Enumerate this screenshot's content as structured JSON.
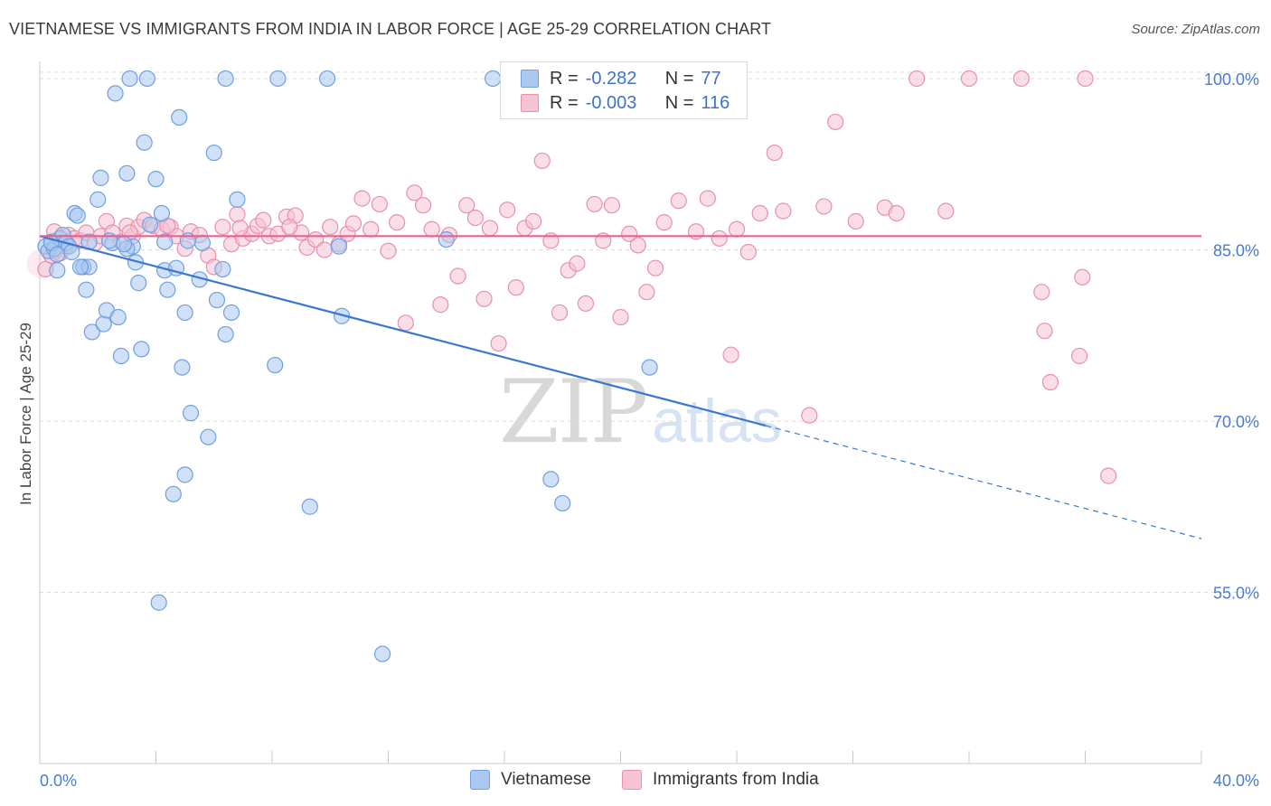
{
  "title": "VIETNAMESE VS IMMIGRANTS FROM INDIA IN LABOR FORCE | AGE 25-29 CORRELATION CHART",
  "source": "Source: ZipAtlas.com",
  "watermark": {
    "zip": "ZIP",
    "atlas": "atlas"
  },
  "colors": {
    "blue_fill": "#aac8f0",
    "blue_stroke": "#6f9fe0",
    "blue_line": "#3a78d0",
    "pink_fill": "#f5c3d3",
    "pink_stroke": "#e890ac",
    "pink_line": "#e8628e",
    "tick_text": "#4a7bd0",
    "grid": "#dcdcdc"
  },
  "legend": {
    "rows": [
      {
        "r_label": "R =",
        "r_value": "-0.282",
        "n_label": "N =",
        "n_value": "77"
      },
      {
        "r_label": "R =",
        "r_value": "-0.003",
        "n_label": "N =",
        "n_value": "116"
      }
    ]
  },
  "bottom_legend": {
    "items": [
      "Vietnamese",
      "Immigrants from India"
    ]
  },
  "chart_data": {
    "type": "scatter",
    "title": "VIETNAMESE VS IMMIGRANTS FROM INDIA IN LABOR FORCE | AGE 25-29 CORRELATION CHART",
    "xlabel": "",
    "ylabel": "In Labor Force | Age 25-29",
    "xlim": [
      0,
      40
    ],
    "ylim": [
      40,
      101.5
    ],
    "x_tick_labels": [
      "0.0%",
      "40.0%"
    ],
    "y_ticks": [
      55,
      70,
      85,
      100
    ],
    "y_tick_labels": [
      "55.0%",
      "70.0%",
      "85.0%",
      "100.0%"
    ],
    "grid": "horizontal dashed",
    "legend_position": "top-center",
    "series": [
      {
        "name": "Vietnamese",
        "r": -0.282,
        "n": 77,
        "trend": {
          "x0": 0,
          "y0": 86.2,
          "x1": 25.0,
          "y1": 69.6,
          "dashed_to_x": 40,
          "dashed_to_y": 59.7
        },
        "points": [
          [
            0.2,
            85.3
          ],
          [
            0.3,
            84.9
          ],
          [
            0.4,
            85.7
          ],
          [
            0.5,
            85.1
          ],
          [
            0.6,
            83.2
          ],
          [
            0.7,
            86.0
          ],
          [
            0.8,
            86.3
          ],
          [
            0.9,
            85.6
          ],
          [
            1.0,
            85.3
          ],
          [
            1.2,
            88.2
          ],
          [
            1.3,
            88.0
          ],
          [
            1.5,
            83.5
          ],
          [
            1.6,
            81.5
          ],
          [
            1.5,
            83.5
          ],
          [
            1.7,
            83.5
          ],
          [
            1.8,
            77.8
          ],
          [
            1.7,
            85.7
          ],
          [
            2.0,
            89.4
          ],
          [
            2.1,
            91.3
          ],
          [
            2.2,
            78.5
          ],
          [
            2.3,
            79.7
          ],
          [
            2.5,
            85.6
          ],
          [
            2.6,
            98.7
          ],
          [
            2.7,
            79.1
          ],
          [
            2.8,
            75.7
          ],
          [
            3.0,
            91.7
          ],
          [
            3.1,
            100.0
          ],
          [
            3.2,
            85.3
          ],
          [
            3.3,
            83.9
          ],
          [
            3.4,
            82.1
          ],
          [
            3.5,
            76.3
          ],
          [
            3.6,
            94.4
          ],
          [
            3.7,
            100.0
          ],
          [
            3.8,
            87.2
          ],
          [
            4.0,
            91.2
          ],
          [
            4.1,
            54.1
          ],
          [
            4.2,
            88.2
          ],
          [
            4.3,
            83.2
          ],
          [
            4.4,
            81.5
          ],
          [
            4.3,
            85.7
          ],
          [
            4.7,
            83.4
          ],
          [
            4.8,
            96.6
          ],
          [
            4.9,
            74.7
          ],
          [
            5.0,
            79.5
          ],
          [
            5.0,
            65.3
          ],
          [
            5.2,
            70.7
          ],
          [
            5.5,
            82.4
          ],
          [
            5.6,
            85.6
          ],
          [
            5.8,
            68.6
          ],
          [
            6.0,
            93.5
          ],
          [
            6.1,
            80.6
          ],
          [
            6.3,
            83.3
          ],
          [
            6.4,
            77.6
          ],
          [
            6.4,
            100.0
          ],
          [
            6.6,
            79.5
          ],
          [
            6.8,
            89.4
          ],
          [
            8.2,
            100.0
          ],
          [
            8.1,
            74.9
          ],
          [
            9.3,
            62.5
          ],
          [
            9.9,
            100.0
          ],
          [
            10.3,
            85.3
          ],
          [
            10.4,
            79.2
          ],
          [
            4.6,
            63.6
          ],
          [
            14.0,
            85.9
          ],
          [
            15.6,
            100.0
          ],
          [
            17.6,
            64.9
          ],
          [
            18.0,
            62.8
          ],
          [
            21.0,
            74.7
          ],
          [
            11.8,
            49.6
          ],
          [
            0.4,
            85.6
          ],
          [
            0.6,
            84.6
          ],
          [
            1.1,
            84.8
          ],
          [
            1.4,
            83.5
          ],
          [
            2.4,
            85.8
          ],
          [
            3.0,
            85.1
          ],
          [
            5.1,
            85.8
          ],
          [
            2.9,
            85.5
          ]
        ]
      },
      {
        "name": "Immigrants from India",
        "r": -0.003,
        "n": 116,
        "trend": {
          "x0": 0,
          "y0": 86.2,
          "x1": 40,
          "y1": 86.2
        },
        "points": [
          [
            0.2,
            83.3
          ],
          [
            0.4,
            84.5
          ],
          [
            0.6,
            85.0
          ],
          [
            0.7,
            84.7
          ],
          [
            0.9,
            85.3
          ],
          [
            1.0,
            86.3
          ],
          [
            1.2,
            86.0
          ],
          [
            1.4,
            85.8
          ],
          [
            1.6,
            86.5
          ],
          [
            1.9,
            85.6
          ],
          [
            2.1,
            86.2
          ],
          [
            2.3,
            87.5
          ],
          [
            2.5,
            86.5
          ],
          [
            2.8,
            85.7
          ],
          [
            3.0,
            87.1
          ],
          [
            3.2,
            86.2
          ],
          [
            3.4,
            87.0
          ],
          [
            3.6,
            87.6
          ],
          [
            3.9,
            87.1
          ],
          [
            4.2,
            86.8
          ],
          [
            4.5,
            87.0
          ],
          [
            4.7,
            86.2
          ],
          [
            5.0,
            85.1
          ],
          [
            5.2,
            86.6
          ],
          [
            5.5,
            86.3
          ],
          [
            5.8,
            84.5
          ],
          [
            6.0,
            83.5
          ],
          [
            6.3,
            87.0
          ],
          [
            6.6,
            85.5
          ],
          [
            6.8,
            88.1
          ],
          [
            7.0,
            86.0
          ],
          [
            7.3,
            86.4
          ],
          [
            7.5,
            87.1
          ],
          [
            7.7,
            87.6
          ],
          [
            7.9,
            86.2
          ],
          [
            8.2,
            86.4
          ],
          [
            8.5,
            87.9
          ],
          [
            8.8,
            88.0
          ],
          [
            9.0,
            86.5
          ],
          [
            9.2,
            85.2
          ],
          [
            9.5,
            85.9
          ],
          [
            9.8,
            85.0
          ],
          [
            10.0,
            87.0
          ],
          [
            10.3,
            85.5
          ],
          [
            10.6,
            86.4
          ],
          [
            10.8,
            87.3
          ],
          [
            11.1,
            89.5
          ],
          [
            11.4,
            86.8
          ],
          [
            11.7,
            89.0
          ],
          [
            12.0,
            84.9
          ],
          [
            12.3,
            87.4
          ],
          [
            12.6,
            78.6
          ],
          [
            12.9,
            90.0
          ],
          [
            13.2,
            88.9
          ],
          [
            13.5,
            86.8
          ],
          [
            13.8,
            80.2
          ],
          [
            14.1,
            86.3
          ],
          [
            14.4,
            82.7
          ],
          [
            14.7,
            88.9
          ],
          [
            15.0,
            87.8
          ],
          [
            15.3,
            80.7
          ],
          [
            15.5,
            86.9
          ],
          [
            15.8,
            76.8
          ],
          [
            16.1,
            88.5
          ],
          [
            16.4,
            81.7
          ],
          [
            16.7,
            86.9
          ],
          [
            17.0,
            87.5
          ],
          [
            17.3,
            92.8
          ],
          [
            17.6,
            85.8
          ],
          [
            17.9,
            79.5
          ],
          [
            18.2,
            83.2
          ],
          [
            18.5,
            83.8
          ],
          [
            18.8,
            80.3
          ],
          [
            19.1,
            89.0
          ],
          [
            19.4,
            85.8
          ],
          [
            19.7,
            88.9
          ],
          [
            20.0,
            79.1
          ],
          [
            20.3,
            86.4
          ],
          [
            20.6,
            85.4
          ],
          [
            20.9,
            81.3
          ],
          [
            21.2,
            83.4
          ],
          [
            21.5,
            87.4
          ],
          [
            22.0,
            89.3
          ],
          [
            22.6,
            86.6
          ],
          [
            23.0,
            89.5
          ],
          [
            23.4,
            86.0
          ],
          [
            23.8,
            75.8
          ],
          [
            24.0,
            86.8
          ],
          [
            24.4,
            84.8
          ],
          [
            24.8,
            88.2
          ],
          [
            25.3,
            93.5
          ],
          [
            25.6,
            88.4
          ],
          [
            26.5,
            70.5
          ],
          [
            27.0,
            88.8
          ],
          [
            27.4,
            96.2
          ],
          [
            28.1,
            87.5
          ],
          [
            29.1,
            88.7
          ],
          [
            29.5,
            88.2
          ],
          [
            30.2,
            100.0
          ],
          [
            31.2,
            88.4
          ],
          [
            32.0,
            100.0
          ],
          [
            33.8,
            100.0
          ],
          [
            34.5,
            81.3
          ],
          [
            34.6,
            77.9
          ],
          [
            34.8,
            73.4
          ],
          [
            35.8,
            75.7
          ],
          [
            35.9,
            82.6
          ],
          [
            36.0,
            100.0
          ],
          [
            36.8,
            65.2
          ],
          [
            3.1,
            86.5
          ],
          [
            4.4,
            87.1
          ],
          [
            6.9,
            86.9
          ],
          [
            8.6,
            87.0
          ],
          [
            0.5,
            86.6
          ]
        ]
      }
    ]
  }
}
